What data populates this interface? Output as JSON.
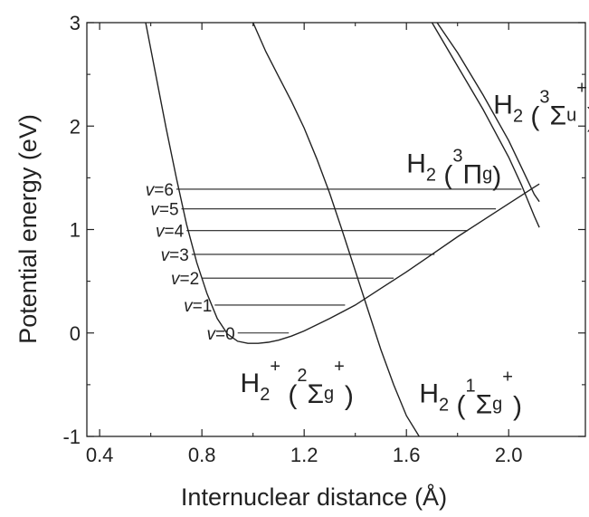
{
  "chart_data": {
    "type": "line",
    "xlabel": "Internuclear distance (Å)",
    "ylabel": "Potential energy (eV)",
    "xlim": [
      0.35,
      2.3
    ],
    "ylim": [
      -1,
      3
    ],
    "x_ticks": [
      0.4,
      0.8,
      1.2,
      1.6,
      2.0
    ],
    "x_tick_labels": [
      "0.4",
      "0.8",
      "1.2",
      "1.6",
      "2.0"
    ],
    "y_ticks": [
      -1,
      0,
      1,
      2,
      3
    ],
    "y_tick_labels": [
      "-1",
      "0",
      "1",
      "2",
      "3"
    ],
    "grid": false,
    "series": [
      {
        "x": [
          0.58,
          0.62,
          0.66,
          0.7,
          0.74,
          0.78,
          0.82,
          0.86,
          0.9,
          0.94,
          0.98,
          1.02,
          1.06,
          1.1,
          1.15,
          1.2,
          1.3,
          1.4,
          1.5,
          1.6,
          1.7,
          1.8,
          1.9,
          2.0,
          2.05,
          2.1,
          2.12
        ],
        "y": [
          3.0,
          2.49,
          1.98,
          1.5,
          1.05,
          0.68,
          0.38,
          0.14,
          -0.01,
          -0.08,
          -0.1,
          -0.1,
          -0.09,
          -0.07,
          -0.03,
          0.02,
          0.14,
          0.27,
          0.43,
          0.59,
          0.76,
          0.93,
          1.09,
          1.25,
          1.33,
          1.41,
          1.44
        ]
      },
      {
        "x": [
          1.0,
          1.05,
          1.1,
          1.15,
          1.2,
          1.25,
          1.3,
          1.35,
          1.4,
          1.45,
          1.5,
          1.55,
          1.6,
          1.65
        ],
        "y": [
          3.0,
          2.72,
          2.48,
          2.24,
          1.98,
          1.68,
          1.35,
          0.98,
          0.6,
          0.22,
          -0.16,
          -0.5,
          -0.8,
          -1.0
        ]
      },
      {
        "x": [
          1.72,
          1.8,
          1.9,
          2.0,
          2.05,
          2.1,
          2.12
        ],
        "y": [
          3.0,
          2.71,
          2.3,
          1.86,
          1.6,
          1.34,
          1.27
        ]
      },
      {
        "x": [
          1.7,
          1.8,
          1.9,
          2.0,
          2.05,
          2.1,
          2.12
        ],
        "y": [
          3.0,
          2.58,
          2.16,
          1.7,
          1.43,
          1.13,
          1.02
        ]
      }
    ],
    "vibrational_levels": [
      {
        "label": "v=0",
        "energy": 0.0,
        "x_start": 0.94,
        "x_end": 1.14
      },
      {
        "label": "v=1",
        "energy": 0.27,
        "x_start": 0.85,
        "x_end": 1.36
      },
      {
        "label": "v=2",
        "energy": 0.53,
        "x_start": 0.8,
        "x_end": 1.55
      },
      {
        "label": "v=3",
        "energy": 0.76,
        "x_start": 0.76,
        "x_end": 1.71
      },
      {
        "label": "v=4",
        "energy": 0.99,
        "x_start": 0.74,
        "x_end": 1.84
      },
      {
        "label": "v=5",
        "energy": 1.2,
        "x_start": 0.72,
        "x_end": 1.95
      },
      {
        "label": "v=6",
        "energy": 1.39,
        "x_start": 0.7,
        "x_end": 2.05
      }
    ],
    "annotations": [
      {
        "base": "H",
        "sub": "2",
        "sup": "+",
        "paren_open": " (",
        "term_sup": "2",
        "term": "Σ",
        "term_sub": "g",
        "term_post_sup": "+",
        "paren_close": ")",
        "x": 0.95,
        "y": -0.57
      },
      {
        "base": "H",
        "sub": "2",
        "sup": "",
        "paren_open": " (",
        "term_sup": "1",
        "term": "Σ",
        "term_sub": "g",
        "term_post_sup": "+",
        "paren_close": ")",
        "x": 1.65,
        "y": -0.67
      },
      {
        "base": "H",
        "sub": "2",
        "sup": "",
        "paren_open": " (",
        "term_sup": "3",
        "term": "Π",
        "term_sub": "g",
        "term_post_sup": "",
        "paren_close": ")",
        "x": 1.6,
        "y": 1.55
      },
      {
        "base": "H",
        "sub": "2",
        "sup": "",
        "paren_open": " (",
        "term_sup": "3",
        "term": "Σ",
        "term_sub": "u",
        "term_post_sup": "+",
        "paren_close": ")",
        "x": 1.94,
        "y": 2.12
      }
    ],
    "colors": {
      "line": "#222222",
      "axis": "#222222",
      "background": "#ffffff"
    }
  }
}
